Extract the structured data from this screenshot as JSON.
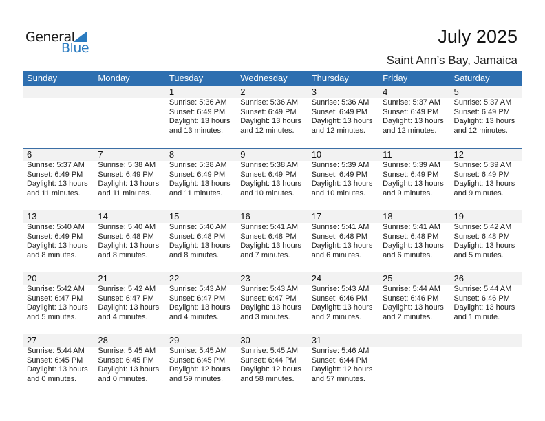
{
  "logo": {
    "text_general": "General",
    "text_blue": "Blue"
  },
  "title": "July 2025",
  "location": "Saint Ann’s Bay, Jamaica",
  "colors": {
    "header": "#2e6fb0",
    "date_strip": "#f2f2f2",
    "logo_blue": "#2a7bc0"
  },
  "weekdays": [
    "Sunday",
    "Monday",
    "Tuesday",
    "Wednesday",
    "Thursday",
    "Friday",
    "Saturday"
  ],
  "weeks": [
    [
      null,
      null,
      {
        "day": "1",
        "sunrise": "Sunrise: 5:36 AM",
        "sunset": "Sunset: 6:49 PM",
        "daylight": "Daylight: 13 hours",
        "daylight2": "and 13 minutes."
      },
      {
        "day": "2",
        "sunrise": "Sunrise: 5:36 AM",
        "sunset": "Sunset: 6:49 PM",
        "daylight": "Daylight: 13 hours",
        "daylight2": "and 12 minutes."
      },
      {
        "day": "3",
        "sunrise": "Sunrise: 5:36 AM",
        "sunset": "Sunset: 6:49 PM",
        "daylight": "Daylight: 13 hours",
        "daylight2": "and 12 minutes."
      },
      {
        "day": "4",
        "sunrise": "Sunrise: 5:37 AM",
        "sunset": "Sunset: 6:49 PM",
        "daylight": "Daylight: 13 hours",
        "daylight2": "and 12 minutes."
      },
      {
        "day": "5",
        "sunrise": "Sunrise: 5:37 AM",
        "sunset": "Sunset: 6:49 PM",
        "daylight": "Daylight: 13 hours",
        "daylight2": "and 12 minutes."
      }
    ],
    [
      {
        "day": "6",
        "sunrise": "Sunrise: 5:37 AM",
        "sunset": "Sunset: 6:49 PM",
        "daylight": "Daylight: 13 hours",
        "daylight2": "and 11 minutes."
      },
      {
        "day": "7",
        "sunrise": "Sunrise: 5:38 AM",
        "sunset": "Sunset: 6:49 PM",
        "daylight": "Daylight: 13 hours",
        "daylight2": "and 11 minutes."
      },
      {
        "day": "8",
        "sunrise": "Sunrise: 5:38 AM",
        "sunset": "Sunset: 6:49 PM",
        "daylight": "Daylight: 13 hours",
        "daylight2": "and 11 minutes."
      },
      {
        "day": "9",
        "sunrise": "Sunrise: 5:38 AM",
        "sunset": "Sunset: 6:49 PM",
        "daylight": "Daylight: 13 hours",
        "daylight2": "and 10 minutes."
      },
      {
        "day": "10",
        "sunrise": "Sunrise: 5:39 AM",
        "sunset": "Sunset: 6:49 PM",
        "daylight": "Daylight: 13 hours",
        "daylight2": "and 10 minutes."
      },
      {
        "day": "11",
        "sunrise": "Sunrise: 5:39 AM",
        "sunset": "Sunset: 6:49 PM",
        "daylight": "Daylight: 13 hours",
        "daylight2": "and 9 minutes."
      },
      {
        "day": "12",
        "sunrise": "Sunrise: 5:39 AM",
        "sunset": "Sunset: 6:49 PM",
        "daylight": "Daylight: 13 hours",
        "daylight2": "and 9 minutes."
      }
    ],
    [
      {
        "day": "13",
        "sunrise": "Sunrise: 5:40 AM",
        "sunset": "Sunset: 6:49 PM",
        "daylight": "Daylight: 13 hours",
        "daylight2": "and 8 minutes."
      },
      {
        "day": "14",
        "sunrise": "Sunrise: 5:40 AM",
        "sunset": "Sunset: 6:48 PM",
        "daylight": "Daylight: 13 hours",
        "daylight2": "and 8 minutes."
      },
      {
        "day": "15",
        "sunrise": "Sunrise: 5:40 AM",
        "sunset": "Sunset: 6:48 PM",
        "daylight": "Daylight: 13 hours",
        "daylight2": "and 8 minutes."
      },
      {
        "day": "16",
        "sunrise": "Sunrise: 5:41 AM",
        "sunset": "Sunset: 6:48 PM",
        "daylight": "Daylight: 13 hours",
        "daylight2": "and 7 minutes."
      },
      {
        "day": "17",
        "sunrise": "Sunrise: 5:41 AM",
        "sunset": "Sunset: 6:48 PM",
        "daylight": "Daylight: 13 hours",
        "daylight2": "and 6 minutes."
      },
      {
        "day": "18",
        "sunrise": "Sunrise: 5:41 AM",
        "sunset": "Sunset: 6:48 PM",
        "daylight": "Daylight: 13 hours",
        "daylight2": "and 6 minutes."
      },
      {
        "day": "19",
        "sunrise": "Sunrise: 5:42 AM",
        "sunset": "Sunset: 6:48 PM",
        "daylight": "Daylight: 13 hours",
        "daylight2": "and 5 minutes."
      }
    ],
    [
      {
        "day": "20",
        "sunrise": "Sunrise: 5:42 AM",
        "sunset": "Sunset: 6:47 PM",
        "daylight": "Daylight: 13 hours",
        "daylight2": "and 5 minutes."
      },
      {
        "day": "21",
        "sunrise": "Sunrise: 5:42 AM",
        "sunset": "Sunset: 6:47 PM",
        "daylight": "Daylight: 13 hours",
        "daylight2": "and 4 minutes."
      },
      {
        "day": "22",
        "sunrise": "Sunrise: 5:43 AM",
        "sunset": "Sunset: 6:47 PM",
        "daylight": "Daylight: 13 hours",
        "daylight2": "and 4 minutes."
      },
      {
        "day": "23",
        "sunrise": "Sunrise: 5:43 AM",
        "sunset": "Sunset: 6:47 PM",
        "daylight": "Daylight: 13 hours",
        "daylight2": "and 3 minutes."
      },
      {
        "day": "24",
        "sunrise": "Sunrise: 5:43 AM",
        "sunset": "Sunset: 6:46 PM",
        "daylight": "Daylight: 13 hours",
        "daylight2": "and 2 minutes."
      },
      {
        "day": "25",
        "sunrise": "Sunrise: 5:44 AM",
        "sunset": "Sunset: 6:46 PM",
        "daylight": "Daylight: 13 hours",
        "daylight2": "and 2 minutes."
      },
      {
        "day": "26",
        "sunrise": "Sunrise: 5:44 AM",
        "sunset": "Sunset: 6:46 PM",
        "daylight": "Daylight: 13 hours",
        "daylight2": "and 1 minute."
      }
    ],
    [
      {
        "day": "27",
        "sunrise": "Sunrise: 5:44 AM",
        "sunset": "Sunset: 6:45 PM",
        "daylight": "Daylight: 13 hours",
        "daylight2": "and 0 minutes."
      },
      {
        "day": "28",
        "sunrise": "Sunrise: 5:45 AM",
        "sunset": "Sunset: 6:45 PM",
        "daylight": "Daylight: 13 hours",
        "daylight2": "and 0 minutes."
      },
      {
        "day": "29",
        "sunrise": "Sunrise: 5:45 AM",
        "sunset": "Sunset: 6:45 PM",
        "daylight": "Daylight: 12 hours",
        "daylight2": "and 59 minutes."
      },
      {
        "day": "30",
        "sunrise": "Sunrise: 5:45 AM",
        "sunset": "Sunset: 6:44 PM",
        "daylight": "Daylight: 12 hours",
        "daylight2": "and 58 minutes."
      },
      {
        "day": "31",
        "sunrise": "Sunrise: 5:46 AM",
        "sunset": "Sunset: 6:44 PM",
        "daylight": "Daylight: 12 hours",
        "daylight2": "and 57 minutes."
      },
      null,
      null
    ]
  ]
}
